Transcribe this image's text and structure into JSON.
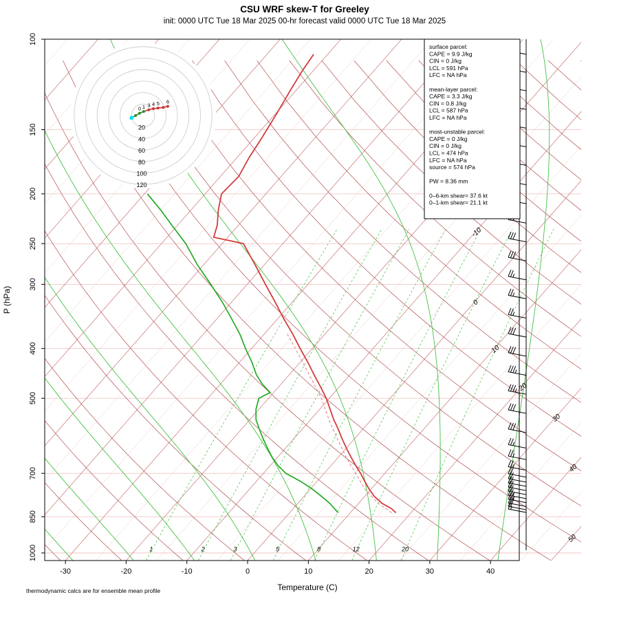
{
  "title": "CSU WRF skew-T for Greeley",
  "subtitle": "init: 0000 UTC Tue 18 Mar 2025    00-hr forecast valid 0000 UTC Tue 18 Mar 2025",
  "footnote": "thermodynamic calcs are for ensemble mean profile",
  "axes": {
    "x_label": "Temperature (C)",
    "y_label": "P (hPa)",
    "pressure_ticks": [
      100,
      150,
      200,
      250,
      300,
      400,
      500,
      700,
      850,
      1000
    ],
    "temperature_ticks": [
      -30,
      -20,
      -10,
      0,
      10,
      20,
      30,
      40
    ],
    "isotherm_edge_labels": [
      -10,
      0,
      10,
      20,
      30,
      40,
      50
    ]
  },
  "info_box": {
    "lines": [
      "surface parcel:",
      "CAPE = 9.9 J/kg",
      "CIN = 0 J/kg",
      "LCL = 591 hPa",
      "LFC = NA hPa",
      "",
      "mean-layer parcel:",
      "CAPE = 3.3 J/kg",
      "CIN = 0.8 J/kg",
      "LCL = 587 hPa",
      "LFC = NA hPa",
      "",
      "most-unstable parcel:",
      "CAPE = 0 J/kg",
      "CIN = 0 J/kg",
      "LCL = 474 hPa",
      "LFC = NA hPa",
      "source = 574 hPa",
      "",
      "PW =  8.36 mm",
      "",
      "0–6-km shear= 37.6 kt",
      "0–1-km shear= 21.1 kt"
    ]
  },
  "colors": {
    "temperature": "#d33b3b",
    "dewpoint": "#22aa22",
    "parcel": "#e89090",
    "isotherm_major": "#cf8484",
    "isotherm_minor": "#ecc9c9",
    "dry_adiabat": "#b05050",
    "moist_adiabat": "#44c044",
    "mixing_ratio": "#3dbd3d",
    "isobar": "#f0bcbc",
    "edge_label": "#c03030",
    "barb": "#000000",
    "hodo_ring": "#c8c8c8",
    "hodo_low": "#2d8a2d",
    "hodo_high": "#cc3333",
    "storm_motion": "#00e5ee"
  },
  "chart_data": {
    "type": "line",
    "title": "CSU WRF skew-T for Greeley",
    "xlabel": "Temperature (C)",
    "ylabel": "P (hPa)",
    "x_range_C": [
      -35,
      45
    ],
    "pressure_range_hPa": [
      100,
      1034
    ],
    "temperature_profile": {
      "pressure_hPa": [
        835,
        820,
        800,
        775,
        750,
        725,
        700,
        675,
        650,
        625,
        600,
        575,
        550,
        525,
        500,
        475,
        450,
        425,
        400,
        375,
        350,
        325,
        300,
        275,
        250,
        243,
        230,
        215,
        200,
        185,
        170,
        155,
        140,
        125,
        115,
        107
      ],
      "temperature_C": [
        17.5,
        16.2,
        13.8,
        11.5,
        9.6,
        7.8,
        6.0,
        4.0,
        2.0,
        0.0,
        -2.0,
        -4.0,
        -6.2,
        -8.3,
        -10.5,
        -13.1,
        -15.9,
        -18.8,
        -22.0,
        -25.3,
        -29.0,
        -32.8,
        -37.0,
        -41.5,
        -46.5,
        -52.3,
        -53.5,
        -55.5,
        -57.3,
        -57.0,
        -58.0,
        -58.8,
        -59.8,
        -61.0,
        -61.8,
        -62.3
      ]
    },
    "dewpoint_profile": {
      "pressure_hPa": [
        835,
        820,
        800,
        775,
        750,
        725,
        700,
        675,
        650,
        625,
        600,
        575,
        550,
        525,
        500,
        487,
        470,
        450,
        425,
        400,
        375,
        350,
        325,
        300,
        275,
        250,
        230,
        215,
        200
      ],
      "dewpoint_C": [
        8.0,
        6.8,
        5.2,
        2.8,
        0.2,
        -2.8,
        -6.3,
        -8.8,
        -11.0,
        -13.0,
        -15.0,
        -17.0,
        -19.0,
        -20.5,
        -21.6,
        -20.6,
        -23.0,
        -25.4,
        -28.0,
        -31.0,
        -34.0,
        -37.6,
        -41.5,
        -46.0,
        -51.0,
        -56.0,
        -61.0,
        -65.0,
        -69.5
      ]
    },
    "parcel_trace": {
      "pressure_hPa": [
        835,
        800,
        750,
        700,
        650,
        600,
        550,
        500,
        450,
        400,
        375
      ],
      "temperature_C": [
        16.8,
        13.2,
        8.9,
        5.2,
        1.2,
        -2.8,
        -7.0,
        -11.3,
        -16.7,
        -22.8,
        -26.2
      ]
    },
    "wind_barbs": {
      "pressure_hPa": [
        107,
        116,
        126,
        137,
        149,
        162,
        176,
        192,
        209,
        228,
        248,
        270,
        294,
        320,
        349,
        380,
        414,
        451,
        491,
        535,
        583,
        625,
        658,
        690,
        712,
        728,
        742,
        756,
        770,
        784,
        798,
        812,
        824,
        834
      ],
      "speed_kt": [
        45,
        50,
        45,
        45,
        40,
        40,
        35,
        35,
        35,
        30,
        30,
        30,
        25,
        25,
        25,
        30,
        30,
        35,
        35,
        30,
        30,
        25,
        25,
        25,
        20,
        20,
        20,
        20,
        20,
        25,
        25,
        20,
        20,
        15
      ]
    },
    "background": {
      "isotherm_step_C": 5,
      "isotherm_range_C": [
        -115,
        60
      ],
      "dry_adiabat_theta_K": {
        "min": 240,
        "max": 490,
        "step": 10
      },
      "moist_adiabat_thetaw_C": [
        -30,
        -20,
        -10,
        0,
        10,
        20,
        30,
        40
      ],
      "mixing_ratio_g_kg": [
        1,
        2,
        3,
        5,
        8,
        12,
        20
      ],
      "isobar_lines_hPa": [
        150,
        200,
        250,
        300,
        400,
        500,
        700,
        850,
        1000
      ]
    },
    "hodograph": {
      "ring_interval_kt": 20,
      "ring_labels": [
        "20",
        "40",
        "60",
        "80",
        "100",
        "120"
      ],
      "trace_u_kt": [
        -20,
        -13,
        -6,
        1,
        10,
        18,
        26,
        35,
        43
      ],
      "trace_v_kt": [
        -4,
        0,
        4,
        7,
        10,
        12,
        13,
        14,
        16
      ],
      "green_segment_end_index": 3,
      "height_km_labels": [
        {
          "label": "0",
          "index": 2
        },
        {
          "label": "1",
          "index": 3
        },
        {
          "label": "3",
          "index": 4
        },
        {
          "label": "4",
          "index": 5
        },
        {
          "label": "5",
          "index": 6
        },
        {
          "label": "6",
          "index": 8
        }
      ],
      "storm_motion_u_kt": -20,
      "storm_motion_v_kt": -4
    },
    "parcel_diagnostics": {
      "surface": {
        "cape_J_kg": 9.9,
        "cin_J_kg": 0,
        "lcl_hPa": 591,
        "lfc_hPa": "NA"
      },
      "mean_layer": {
        "cape_J_kg": 3.3,
        "cin_J_kg": 0.8,
        "lcl_hPa": 587,
        "lfc_hPa": "NA"
      },
      "most_unstable": {
        "cape_J_kg": 0,
        "cin_J_kg": 0,
        "lcl_hPa": 474,
        "lfc_hPa": "NA",
        "source_hPa": 574
      },
      "pw_mm": 8.36,
      "shear_0_6km_kt": 37.6,
      "shear_0_1km_kt": 21.1
    }
  }
}
